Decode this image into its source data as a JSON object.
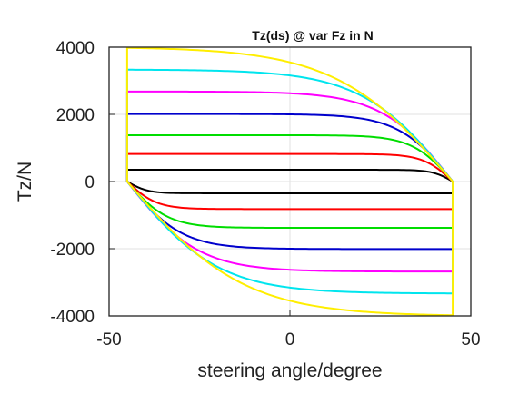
{
  "chart_data": {
    "type": "line",
    "title": "Tz(ds) @ var Fz in N",
    "xlabel": "steering angle/degree",
    "ylabel": "Tz/N",
    "xlim": [
      -50,
      50
    ],
    "ylim": [
      -4000,
      4000
    ],
    "xticks": [
      "-50",
      "0",
      "50"
    ],
    "yticks": [
      "4000",
      "2000",
      "0",
      "-2000",
      "-4000"
    ],
    "grid": true,
    "legend": "none",
    "series": [
      {
        "color": "#000000",
        "amplitude": 350,
        "sharpness": 16,
        "x_range": [
          -45,
          45
        ]
      },
      {
        "color": "#ff0000",
        "amplitude": 820,
        "sharpness": 11,
        "x_range": [
          -45,
          45
        ]
      },
      {
        "color": "#00dd00",
        "amplitude": 1380,
        "sharpness": 8,
        "x_range": [
          -45,
          45
        ]
      },
      {
        "color": "#0000cc",
        "amplitude": 2010,
        "sharpness": 6,
        "x_range": [
          -45,
          45
        ]
      },
      {
        "color": "#ff00ff",
        "amplitude": 2680,
        "sharpness": 4.6,
        "x_range": [
          -45,
          45
        ]
      },
      {
        "color": "#00e5ee",
        "amplitude": 3330,
        "sharpness": 3.6,
        "x_range": [
          -45,
          45
        ]
      },
      {
        "color": "#ffee00",
        "amplitude": 3980,
        "sharpness": 2.8,
        "x_range": [
          -45,
          45
        ]
      }
    ]
  }
}
